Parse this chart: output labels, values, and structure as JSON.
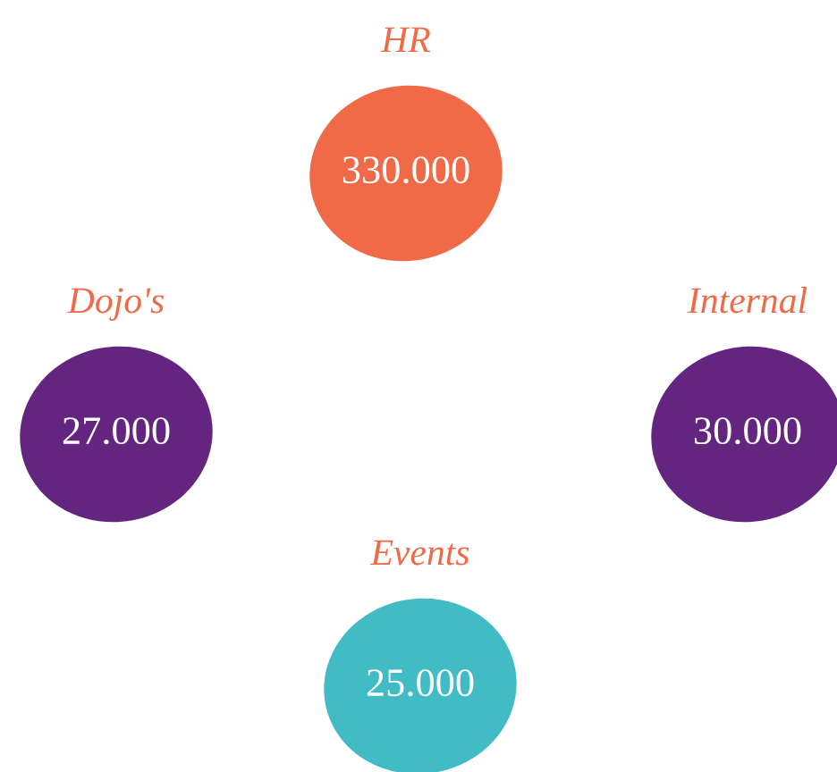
{
  "chart_data": {
    "type": "other",
    "categories": [
      "HR",
      "Dojo's",
      "Internal",
      "Events"
    ],
    "values": [
      330000,
      27000,
      30000,
      25000
    ],
    "value_labels": [
      "330.000",
      "27.000",
      "30.000",
      "25.000"
    ],
    "colors": [
      "#f06a48",
      "#63257f",
      "#63257f",
      "#42bcc4"
    ]
  }
}
